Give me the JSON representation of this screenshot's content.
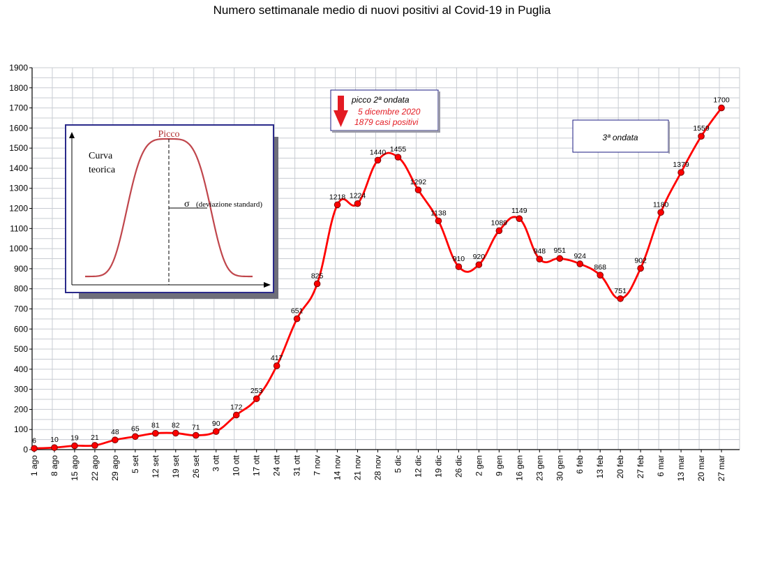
{
  "chart_data": {
    "type": "line",
    "title": "Numero settimanale medio di nuovi positivi al Covid-19 in Puglia",
    "xlabel": "",
    "ylabel": "",
    "ylim": [
      0,
      1900
    ],
    "yticks": [
      0,
      100,
      200,
      300,
      400,
      500,
      600,
      700,
      800,
      900,
      1000,
      1100,
      1200,
      1300,
      1400,
      1500,
      1600,
      1700,
      1800,
      1900
    ],
    "grid": true,
    "categories": [
      "1 ago",
      "8 ago",
      "15 ago",
      "22 ago",
      "29 ago",
      "5 set",
      "12 set",
      "19 set",
      "26 set",
      "3 ott",
      "10 ott",
      "17 ott",
      "24 ott",
      "31 ott",
      "7 nov",
      "14 nov",
      "21 nov",
      "28 nov",
      "5 dic",
      "12 dic",
      "19 dic",
      "26 dic",
      "2 gen",
      "9 gen",
      "16 gen",
      "23 gen",
      "30 gen",
      "6 feb",
      "13 feb",
      "20 feb",
      "27 feb",
      "6 mar",
      "13 mar",
      "20 mar",
      "27 mar"
    ],
    "series": [
      {
        "values": [
          6,
          10,
          19,
          21,
          48,
          65,
          81,
          82,
          71,
          90,
          172,
          253,
          417,
          651,
          825,
          1218,
          1224,
          1440,
          1455,
          1292,
          1138,
          910,
          920,
          1089,
          1149,
          948,
          951,
          924,
          868,
          751,
          902,
          1180,
          1379,
          1559,
          1700
        ],
        "color": "#ff0000"
      }
    ],
    "annotations": {
      "peak_box": {
        "title": "picco 2ª ondata",
        "date": "5 dicembre 2020",
        "cases": "1879 casi positivi",
        "arrow_color": "#e31b23"
      },
      "wave3_box": {
        "text": "3ª ondata"
      },
      "theory_box": {
        "title": "Curva teorica",
        "peak_label": "Picco",
        "sigma_label": "σ",
        "sigma_text": "(deviazione standard)"
      }
    }
  }
}
